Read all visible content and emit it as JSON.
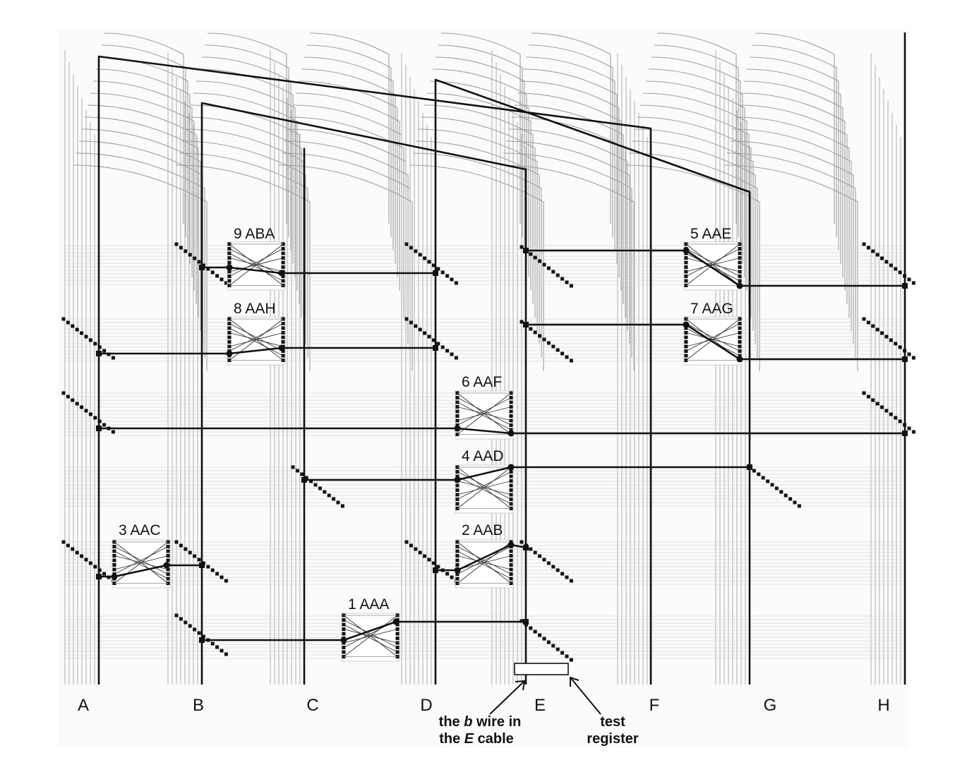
{
  "columns": [
    "A",
    "B",
    "C",
    "D",
    "E",
    "F",
    "G",
    "H"
  ],
  "drums": [
    {
      "number": "1",
      "code": "AAA"
    },
    {
      "number": "2",
      "code": "AAB"
    },
    {
      "number": "3",
      "code": "AAC"
    },
    {
      "number": "4",
      "code": "AAD"
    },
    {
      "number": "5",
      "code": "AAE"
    },
    {
      "number": "6",
      "code": "AAF"
    },
    {
      "number": "7",
      "code": "AAG"
    },
    {
      "number": "8",
      "code": "AAH"
    },
    {
      "number": "9",
      "code": "ABA"
    }
  ],
  "annotations": {
    "b_wire": {
      "line1_pre": "the ",
      "line1_italic": "b",
      "line1_post": " wire in",
      "line2_pre": "the ",
      "line2_italic": "E",
      "line2_post": " cable"
    },
    "test_register": {
      "line1": "test",
      "line2": "register"
    }
  }
}
